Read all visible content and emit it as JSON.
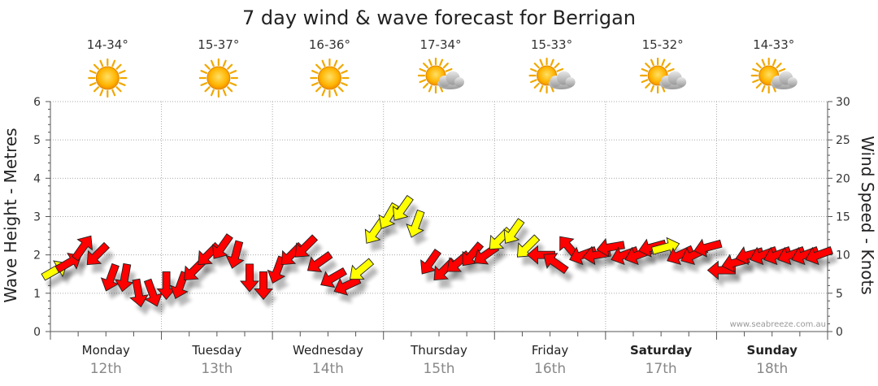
{
  "chart_data": {
    "type": "scatter",
    "title": "7 day wind & wave forecast for Berrigan",
    "ylabel_left": "Wave Height - Metres",
    "ylabel_right": "Wind Speed - Knots",
    "ylim_left": [
      0,
      6
    ],
    "ylim_right": [
      0,
      30
    ],
    "yticks_left": [
      "0",
      "1",
      "2",
      "3",
      "4",
      "5",
      "6"
    ],
    "yticks_right": [
      "0",
      "5",
      "10",
      "15",
      "20",
      "25",
      "30"
    ],
    "grid": true,
    "credit": "www.seabreeze.com.au",
    "days": [
      {
        "day": "Monday",
        "date": "12th",
        "temp": "14-34°",
        "weather": "sunny-icon",
        "bold": false
      },
      {
        "day": "Tuesday",
        "date": "13th",
        "temp": "15-37°",
        "weather": "sunny-icon",
        "bold": false
      },
      {
        "day": "Wednesday",
        "date": "14th",
        "temp": "16-36°",
        "weather": "sunny-icon",
        "bold": false
      },
      {
        "day": "Thursday",
        "date": "15th",
        "temp": "17-34°",
        "weather": "partly-cloudy-icon",
        "bold": false
      },
      {
        "day": "Friday",
        "date": "16th",
        "temp": "15-33°",
        "weather": "partly-cloudy-icon",
        "bold": false
      },
      {
        "day": "Saturday",
        "date": "17th",
        "temp": "15-32°",
        "weather": "partly-cloudy-icon",
        "bold": true
      },
      {
        "day": "Sunday",
        "date": "18th",
        "temp": "14-33°",
        "weather": "partly-cloudy-icon",
        "bold": true
      }
    ],
    "wind_series": {
      "name": "Wind Speed",
      "unit": "knots",
      "hours_from_start": [
        0,
        3,
        6,
        9,
        12,
        15,
        18,
        21,
        24,
        27,
        30,
        33,
        36,
        39,
        42,
        45,
        48,
        51,
        54,
        57,
        60,
        63,
        66,
        69,
        72,
        75,
        78,
        81,
        84,
        87,
        90,
        93,
        96,
        99,
        102,
        105,
        108,
        111,
        114,
        117,
        120,
        123,
        126,
        129,
        132,
        135,
        138,
        141,
        144,
        147,
        150,
        153,
        156,
        159,
        162,
        165
      ],
      "speed": [
        8,
        9,
        11,
        10,
        7,
        7,
        5,
        5,
        6,
        6,
        8,
        10,
        11,
        10,
        7,
        6,
        8,
        10,
        11,
        9,
        7,
        6,
        8,
        13,
        15,
        16,
        14,
        9,
        8,
        9,
        10,
        10,
        12,
        13,
        11,
        10,
        9,
        11,
        10,
        10,
        11,
        10,
        10,
        11,
        11,
        10,
        10,
        11,
        8,
        9,
        10,
        10,
        10,
        10,
        10,
        10
      ],
      "direction_deg": [
        60,
        60,
        35,
        225,
        200,
        190,
        170,
        160,
        180,
        200,
        225,
        225,
        215,
        195,
        180,
        180,
        200,
        225,
        225,
        235,
        240,
        245,
        230,
        215,
        210,
        215,
        200,
        215,
        225,
        230,
        220,
        235,
        225,
        215,
        225,
        270,
        305,
        320,
        250,
        260,
        260,
        250,
        250,
        255,
        75,
        245,
        245,
        255,
        270,
        255,
        255,
        250,
        250,
        250,
        250,
        250
      ],
      "color_class": [
        "light",
        "red",
        "red",
        "red",
        "red",
        "red",
        "red",
        "red",
        "red",
        "red",
        "red",
        "red",
        "red",
        "red",
        "red",
        "red",
        "red",
        "red",
        "red",
        "red",
        "red",
        "red",
        "light",
        "light",
        "light",
        "light",
        "light",
        "red",
        "red",
        "red",
        "red",
        "red",
        "light",
        "light",
        "light",
        "red",
        "red",
        "red",
        "red",
        "red",
        "red",
        "red",
        "red",
        "red",
        "light",
        "red",
        "red",
        "red",
        "red",
        "red",
        "red",
        "red",
        "red",
        "red",
        "red",
        "red"
      ]
    },
    "series_colors": {
      "strong_wind": "#ff0000",
      "light_wind": "#ffff00",
      "outline": "#222222"
    }
  }
}
